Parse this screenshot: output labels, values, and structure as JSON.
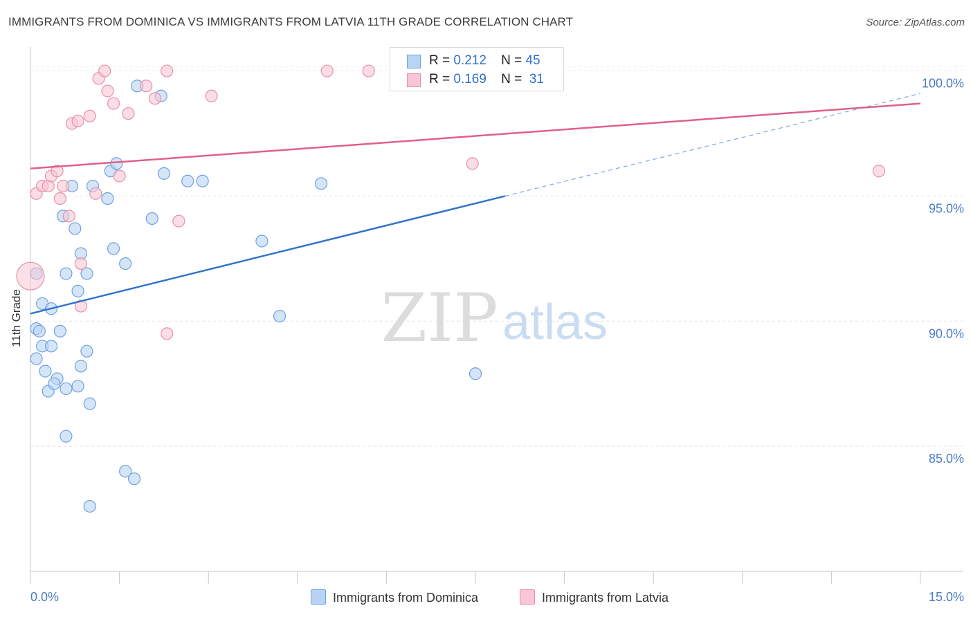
{
  "title": "IMMIGRANTS FROM DOMINICA VS IMMIGRANTS FROM LATVIA 11TH GRADE CORRELATION CHART",
  "source": "Source: ZipAtlas.com",
  "watermark": {
    "zip": "ZIP",
    "atlas": "atlas"
  },
  "legend": {
    "r_label": "R =",
    "n_label": "N =",
    "rows": [
      {
        "r": "0.212",
        "n": "45"
      },
      {
        "r": "0.169",
        "n": "31"
      }
    ]
  },
  "bottom_legend": [
    "Immigrants from Dominica",
    "Immigrants from Latvia"
  ],
  "chart_data": {
    "type": "scatter",
    "title": "IMMIGRANTS FROM DOMINICA VS IMMIGRANTS FROM LATVIA 11TH GRADE CORRELATION CHART",
    "xlabel": "",
    "ylabel": "11th Grade",
    "xlim": [
      0,
      15
    ],
    "ylim": [
      80.0,
      100.9
    ],
    "x_tick_labels": [
      "0.0%",
      "15.0%"
    ],
    "y_ticks": [
      85,
      90,
      95,
      100
    ],
    "y_tick_labels": [
      "85.0%",
      "90.0%",
      "95.0%",
      "100.0%"
    ],
    "grid": true,
    "legend_position": "top-center",
    "series": [
      {
        "name": "Immigrants from Dominica",
        "color": "#6fa0e0",
        "fill": "#b9d3f4",
        "r": 0.212,
        "n": 45,
        "trend": {
          "x0": 0.0,
          "y0": 90.3,
          "x1": 8.0,
          "y1": 95.0,
          "dash_to_x": 15.0,
          "dash_to_y": 99.1
        },
        "points": [
          [
            0.1,
            91.9
          ],
          [
            0.1,
            89.7
          ],
          [
            0.15,
            89.6
          ],
          [
            0.1,
            88.5
          ],
          [
            0.2,
            90.7
          ],
          [
            0.35,
            90.5
          ],
          [
            0.2,
            89.0
          ],
          [
            0.35,
            89.0
          ],
          [
            0.5,
            89.6
          ],
          [
            0.25,
            88.0
          ],
          [
            0.3,
            87.2
          ],
          [
            0.45,
            87.7
          ],
          [
            0.4,
            87.5
          ],
          [
            0.6,
            87.3
          ],
          [
            0.8,
            87.4
          ],
          [
            0.85,
            88.2
          ],
          [
            0.95,
            88.8
          ],
          [
            1.0,
            86.7
          ],
          [
            0.6,
            85.4
          ],
          [
            0.6,
            91.9
          ],
          [
            0.8,
            91.2
          ],
          [
            0.95,
            91.9
          ],
          [
            0.85,
            92.7
          ],
          [
            0.75,
            93.7
          ],
          [
            0.55,
            94.2
          ],
          [
            0.7,
            95.4
          ],
          [
            1.05,
            95.4
          ],
          [
            1.3,
            94.9
          ],
          [
            1.35,
            96.0
          ],
          [
            1.45,
            96.3
          ],
          [
            1.4,
            92.9
          ],
          [
            1.6,
            92.3
          ],
          [
            2.05,
            94.1
          ],
          [
            2.25,
            95.9
          ],
          [
            2.65,
            95.6
          ],
          [
            2.9,
            95.6
          ],
          [
            1.8,
            99.4
          ],
          [
            2.2,
            99.0
          ],
          [
            3.9,
            93.2
          ],
          [
            4.2,
            90.2
          ],
          [
            4.9,
            95.5
          ],
          [
            7.5,
            87.9
          ],
          [
            1.6,
            84.0
          ],
          [
            1.75,
            83.7
          ],
          [
            1.0,
            82.6
          ]
        ]
      },
      {
        "name": "Immigrants from Latvia",
        "color": "#e890a8",
        "fill": "#f8c6d4",
        "r": 0.169,
        "n": 31,
        "trend": {
          "x0": 0.0,
          "y0": 96.1,
          "x1": 15.0,
          "y1": 98.7
        },
        "points": [
          [
            0.0,
            91.8
          ],
          [
            0.1,
            95.1
          ],
          [
            0.2,
            95.4
          ],
          [
            0.3,
            95.4
          ],
          [
            0.35,
            95.8
          ],
          [
            0.45,
            96.0
          ],
          [
            0.5,
            94.9
          ],
          [
            0.55,
            95.4
          ],
          [
            0.65,
            94.2
          ],
          [
            0.7,
            97.9
          ],
          [
            0.8,
            98.0
          ],
          [
            1.0,
            98.2
          ],
          [
            1.1,
            95.1
          ],
          [
            1.15,
            99.7
          ],
          [
            1.25,
            100.0
          ],
          [
            1.3,
            99.2
          ],
          [
            1.4,
            98.7
          ],
          [
            1.5,
            95.8
          ],
          [
            1.65,
            98.3
          ],
          [
            1.95,
            99.4
          ],
          [
            2.1,
            98.9
          ],
          [
            2.3,
            100.0
          ],
          [
            2.5,
            94.0
          ],
          [
            3.05,
            99.0
          ],
          [
            0.85,
            92.3
          ],
          [
            0.85,
            90.6
          ],
          [
            2.3,
            89.5
          ],
          [
            5.0,
            100.0
          ],
          [
            5.7,
            100.0
          ],
          [
            7.45,
            96.3
          ],
          [
            14.3,
            96.0
          ]
        ]
      }
    ]
  }
}
